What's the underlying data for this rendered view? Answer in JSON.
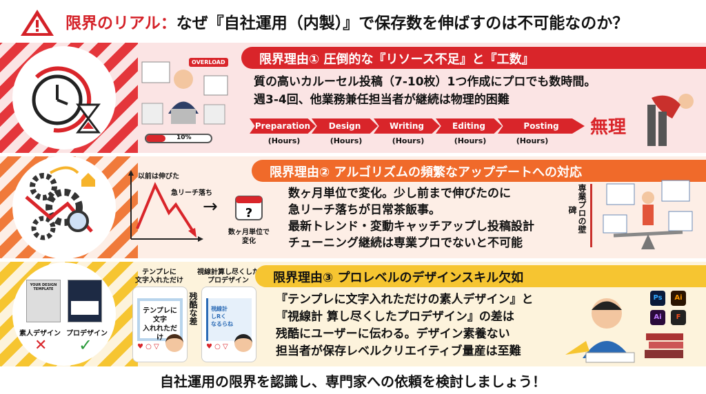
{
  "header": {
    "title_red": "限界のリアル：",
    "title_rest": "なぜ『自社運用（内製）』で保存数を伸ばすのは不可能なのか？",
    "icon": "warning-icon"
  },
  "reason1": {
    "heading": "限界理由① 圧倒的な『リソース不足』と『工数』",
    "lines": [
      "質の高いカルーセル投稿（7-10枚）1つ作成にプロでも数時間。",
      "週3-4回、他業務兼任担当者が継続は物理的困難"
    ],
    "steps": [
      "Preparation",
      "Design",
      "Writing",
      "Editing",
      "Posting"
    ],
    "unit": "(Hours)",
    "verdict": "無理",
    "overload": "OVERLOAD",
    "progress_label": "10%",
    "progress": 0.1,
    "color": "#d9252a"
  },
  "reason2": {
    "heading": "限界理由② アルゴリズムの頻繁なアップデートへの対応",
    "chart_labels": [
      "以前は伸びた",
      "急リーチ落ち"
    ],
    "calendar_caption": [
      "数ヶ月単位で",
      "変化"
    ],
    "lines": [
      "数ヶ月単位で変化。少し前まで伸びたのに",
      "急リーチ落ちが日常茶飯事。",
      "最新トレンド・変動キャッチアップし投稿設計",
      "チューニング継続は専業プロでないと不可能"
    ],
    "wall_label": "専業プロの壁",
    "wall_sub": "碑",
    "color": "#f06a2a"
  },
  "reason3": {
    "heading": "限界理由③ プロレベルのデザインスキル欠如",
    "amateur": "素人デザイン",
    "pro": "プロデザイン",
    "template_text": "YOUR DESIGN TEMPLATE",
    "card1_caption": [
      "テンプレに",
      "文字入れただけ"
    ],
    "card1_text": [
      "テンプレに",
      "文字",
      "入れれただけ"
    ],
    "card2_caption": [
      "視線計算し尽くした",
      "プロデザイン"
    ],
    "card2_text": [
      "視線計",
      "しRく",
      "なるらね"
    ],
    "gap_label": "残酷な差",
    "lines": [
      "『テンプレに文字入れただけの素人デザイン』と",
      "『視線計 算し尽くしたプロデザイン』の差は",
      "残酷にユーザーに伝わる。デザイン素養ない",
      "担当者が保存レベルクリエイティブ量産は至難"
    ],
    "apps": [
      "Ps",
      "Ai",
      "Ai",
      "F"
    ],
    "color": "#f6c531"
  },
  "footer": {
    "text": "自社運用の限界を認識し、専門家への依頼を検討しましょう！"
  }
}
